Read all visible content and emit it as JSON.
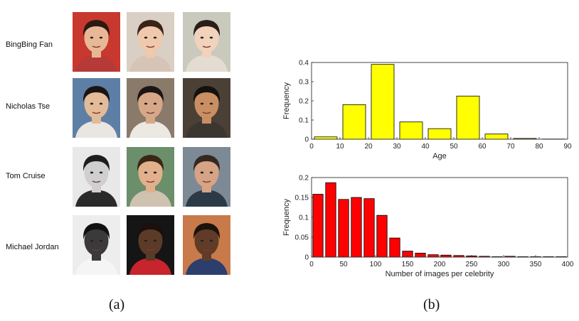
{
  "panel_a": {
    "caption": "(a)",
    "rows": [
      {
        "name": "BingBing Fan",
        "photos": [
          {
            "bg": "#c8382e",
            "skin": "#e8b896",
            "hair": "#2a1a12",
            "shirt": "#b63a38"
          },
          {
            "bg": "#d9cfc4",
            "skin": "#f0c8ab",
            "hair": "#3a2418",
            "shirt": "#d6c4b6"
          },
          {
            "bg": "#c9cabd",
            "skin": "#f1d2bb",
            "hair": "#2b1e18",
            "shirt": "#e4dcd2"
          }
        ]
      },
      {
        "name": "Nicholas Tse",
        "photos": [
          {
            "bg": "#5d7fa6",
            "skin": "#e3bb98",
            "hair": "#1c1412",
            "shirt": "#e9e6e1"
          },
          {
            "bg": "#8a7a6a",
            "skin": "#d6a888",
            "hair": "#1b1614",
            "shirt": "#ece8e2"
          },
          {
            "bg": "#4b4036",
            "skin": "#c98e62",
            "hair": "#15110e",
            "shirt": "#3c3630"
          }
        ]
      },
      {
        "name": "Tom Cruise",
        "photos": [
          {
            "bg": "#e8e8e8",
            "skin": "#cfcfcf",
            "hair": "#1d1d1d",
            "shirt": "#2a2a2a"
          },
          {
            "bg": "#6b8f6b",
            "skin": "#e2b08c",
            "hair": "#3b2616",
            "shirt": "#cfc2b0"
          },
          {
            "bg": "#7d8a95",
            "skin": "#d6a484",
            "hair": "#342820",
            "shirt": "#2c3a48"
          }
        ]
      },
      {
        "name": "Michael Jordan",
        "photos": [
          {
            "bg": "#ededed",
            "skin": "#3a3a3a",
            "hair": "#111111",
            "shirt": "#f5f5f5"
          },
          {
            "bg": "#151515",
            "skin": "#5b3b28",
            "hair": "#1a110c",
            "shirt": "#c8242c"
          },
          {
            "bg": "#c87a4a",
            "skin": "#603c28",
            "hair": "#1c130e",
            "shirt": "#2b3e6e"
          }
        ]
      }
    ]
  },
  "panel_b": {
    "caption": "(b)"
  },
  "chart_data": [
    {
      "type": "bar",
      "title": "",
      "xlabel": "Age",
      "ylabel": "Frequency",
      "x": [
        5,
        15,
        25,
        35,
        45,
        55,
        65,
        75,
        85
      ],
      "values": [
        0.012,
        0.18,
        0.39,
        0.09,
        0.055,
        0.225,
        0.027,
        0.004,
        0.001
      ],
      "xlim": [
        0,
        90
      ],
      "ylim": [
        0,
        0.4
      ],
      "xticks": [
        "0",
        "10",
        "20",
        "30",
        "40",
        "50",
        "60",
        "70",
        "80",
        "90"
      ],
      "yticks": [
        "0",
        "0.1",
        "0.2",
        "0.3",
        "0.4"
      ],
      "bar_color": "#ffff00",
      "grid": false
    },
    {
      "type": "bar",
      "title": "",
      "xlabel": "Number of images per celebrity",
      "ylabel": "Frequency",
      "x": [
        10,
        30,
        50,
        70,
        90,
        110,
        130,
        150,
        170,
        190,
        210,
        230,
        250,
        270,
        290,
        310,
        330,
        350,
        370,
        390
      ],
      "values": [
        0.158,
        0.187,
        0.145,
        0.15,
        0.147,
        0.105,
        0.048,
        0.015,
        0.01,
        0.006,
        0.005,
        0.004,
        0.003,
        0.002,
        0.001,
        0.002,
        0.001,
        0.001,
        0.001,
        0.001
      ],
      "xlim": [
        0,
        400
      ],
      "ylim": [
        0,
        0.2
      ],
      "xticks": [
        "0",
        "50",
        "100",
        "150",
        "200",
        "250",
        "300",
        "350",
        "400"
      ],
      "yticks": [
        "0",
        "0.05",
        "0.1",
        "0.15",
        "0.2"
      ],
      "bar_color": "#ff0000",
      "grid": false
    }
  ]
}
